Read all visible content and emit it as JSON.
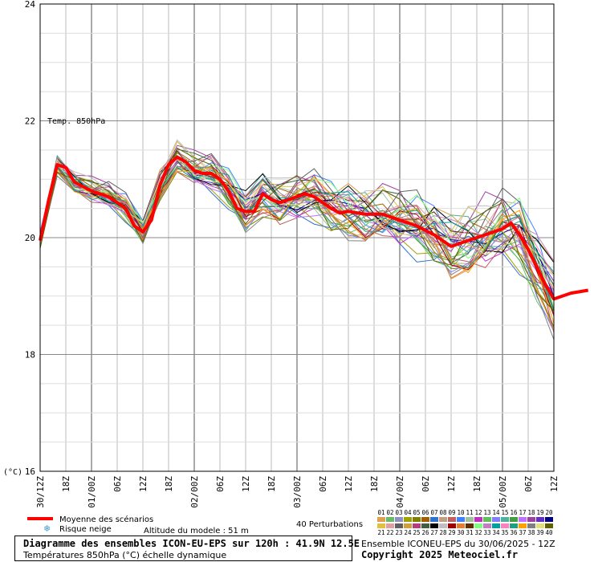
{
  "chart_data": {
    "type": "line",
    "series_label": "Temp. 850hPa",
    "y_unit_label": "(°C)",
    "ylim": [
      16,
      24
    ],
    "y_ticks": [
      16,
      18,
      20,
      22,
      24
    ],
    "x_tick_labels": [
      "30/12Z",
      "18Z",
      "01/00Z",
      "06Z",
      "12Z",
      "18Z",
      "02/00Z",
      "06Z",
      "12Z",
      "18Z",
      "03/00Z",
      "06Z",
      "12Z",
      "18Z",
      "04/00Z",
      "06Z",
      "12Z",
      "18Z",
      "05/00Z",
      "06Z",
      "12Z"
    ],
    "x_step_hours": 6,
    "mean_series": {
      "name": "Moyenne des scénarios",
      "color": "#ff0000",
      "points": [
        [
          0,
          19.95
        ],
        [
          1,
          20.65
        ],
        [
          2,
          21.25
        ],
        [
          3,
          21.2
        ],
        [
          4,
          20.95
        ],
        [
          6,
          20.8
        ],
        [
          8,
          20.7
        ],
        [
          10,
          20.5
        ],
        [
          11,
          20.2
        ],
        [
          12,
          20.1
        ],
        [
          13,
          20.3
        ],
        [
          14,
          20.9
        ],
        [
          15,
          21.25
        ],
        [
          16,
          21.38
        ],
        [
          17,
          21.3
        ],
        [
          18,
          21.15
        ],
        [
          19,
          21.1
        ],
        [
          20,
          21.1
        ],
        [
          21,
          21.0
        ],
        [
          22,
          20.8
        ],
        [
          23,
          20.5
        ],
        [
          24,
          20.45
        ],
        [
          25,
          20.45
        ],
        [
          26,
          20.75
        ],
        [
          27,
          20.65
        ],
        [
          28,
          20.6
        ],
        [
          29,
          20.65
        ],
        [
          30,
          20.7
        ],
        [
          31,
          20.75
        ],
        [
          32,
          20.7
        ],
        [
          33,
          20.6
        ],
        [
          34,
          20.5
        ],
        [
          35,
          20.42
        ],
        [
          36,
          20.45
        ],
        [
          38,
          20.4
        ],
        [
          40,
          20.4
        ],
        [
          42,
          20.3
        ],
        [
          44,
          20.2
        ],
        [
          46,
          20.05
        ],
        [
          48,
          19.85
        ],
        [
          50,
          19.95
        ],
        [
          52,
          20.05
        ],
        [
          54,
          20.15
        ],
        [
          55,
          20.25
        ],
        [
          56,
          20.05
        ],
        [
          57,
          19.8
        ],
        [
          58,
          19.5
        ],
        [
          59,
          19.2
        ],
        [
          60,
          18.95
        ],
        [
          62,
          19.05
        ],
        [
          64,
          19.1
        ]
      ]
    },
    "grid": true,
    "x_axis_segments": [
      {
        "label": "30/12Z"
      },
      {
        "label": "18Z"
      },
      {
        "label": "01/00Z"
      }
    ]
  },
  "legend": {
    "mean_label": "Moyenne des scénarios",
    "snow_label": "Risque neige",
    "altitude_label": "Altitude du modele : 51 m",
    "perturbations_label": "40 Perturbations",
    "member_numbers_top": [
      "01",
      "02",
      "03",
      "04",
      "05",
      "06",
      "07",
      "08",
      "09",
      "10",
      "11",
      "12",
      "13",
      "14",
      "15",
      "16",
      "17",
      "18",
      "19",
      "20"
    ],
    "member_numbers_bottom": [
      "21",
      "22",
      "23",
      "24",
      "25",
      "26",
      "27",
      "28",
      "29",
      "30",
      "31",
      "32",
      "33",
      "34",
      "35",
      "36",
      "37",
      "38",
      "39",
      "40"
    ],
    "member_colors_top": [
      "#e0a050",
      "#66bb66",
      "#9090c0",
      "#a0a000",
      "#808000",
      "#a06000",
      "#3070d0",
      "#c0a080",
      "#c06060",
      "#4080ff",
      "#a0c0a0",
      "#c030c0",
      "#60c060",
      "#8080ff",
      "#50b0a0",
      "#40a040",
      "#c070ff",
      "#a040a0",
      "#6030c0",
      "#000080"
    ],
    "member_colors_bottom": [
      "#e0c040",
      "#e0a0a0",
      "#606060",
      "#d0a040",
      "#b04080",
      "#406040",
      "#000000",
      "#c0c0c0",
      "#a00000",
      "#e08030",
      "#603000",
      "#80ff80",
      "#c080c0",
      "#00a0a0",
      "#ff80c0",
      "#20a080",
      "#ffa000",
      "#808080",
      "#e0e080",
      "#606000"
    ]
  },
  "footer": {
    "title": "Diagramme des ensembles ICON-EU-EPS sur 120h : 41.9N 12.5E",
    "subtitle": "Températures 850hPa (°C) échelle dynamique",
    "run_info": "Ensemble ICONEU-EPS du 30/06/2025 - 12Z",
    "copyright": "Copyright 2025 Meteociel.fr"
  }
}
